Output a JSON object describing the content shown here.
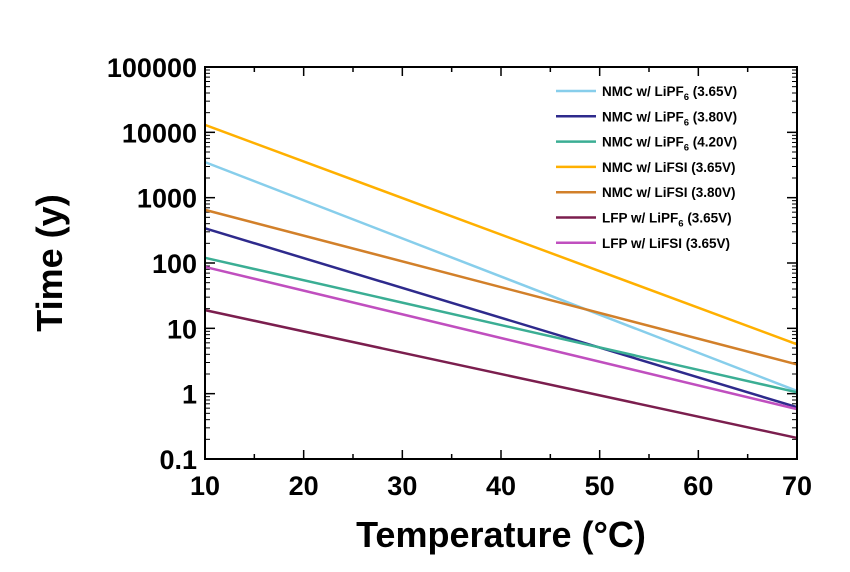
{
  "chart_data": {
    "type": "line",
    "title": "",
    "xlabel": "Temperature (°C)",
    "ylabel": "Time (y)",
    "xlim": [
      10,
      70
    ],
    "ylim": [
      0.1,
      100000
    ],
    "yscale": "log",
    "grid": false,
    "legend_position": "top-right",
    "xticks": [
      "10",
      "20",
      "30",
      "40",
      "50",
      "60",
      "70"
    ],
    "yticks": [
      "0.1",
      "1",
      "10",
      "100",
      "1000",
      "10000",
      "100000"
    ],
    "series": [
      {
        "name": "NMC w/ LiPF6 (3.65V)",
        "label_main": "NMC w/ LiPF",
        "label_sub": "6",
        "label_tail": " (3.65V)",
        "color": "#87CEEB",
        "x": [
          10,
          70
        ],
        "y": [
          3500,
          1.1
        ]
      },
      {
        "name": "NMC w/ LiPF6 (3.80V)",
        "label_main": "NMC w/ LiPF",
        "label_sub": "6",
        "label_tail": " (3.80V)",
        "color": "#2E2A8C",
        "x": [
          10,
          70
        ],
        "y": [
          340,
          0.62
        ]
      },
      {
        "name": "NMC w/ LiPF6 (4.20V)",
        "label_main": "NMC w/ LiPF",
        "label_sub": "6",
        "label_tail": " (4.20V)",
        "color": "#3BAE94",
        "x": [
          10,
          70
        ],
        "y": [
          120,
          1.05
        ]
      },
      {
        "name": "NMC w/ LiFSI (3.65V)",
        "label_main": "NMC w/ LiFSI (3.65V)",
        "label_sub": "",
        "label_tail": "",
        "color": "#FFB000",
        "x": [
          10,
          70
        ],
        "y": [
          13000,
          5.7
        ]
      },
      {
        "name": "NMC w/ LiFSI (3.80V)",
        "label_main": "NMC w/ LiFSI (3.80V)",
        "label_sub": "",
        "label_tail": "",
        "color": "#D2802A",
        "x": [
          10,
          70
        ],
        "y": [
          650,
          2.8
        ]
      },
      {
        "name": "LFP w/ LiPF6 (3.65V)",
        "label_main": "LFP w/ LiPF",
        "label_sub": "6",
        "label_tail": " (3.65V)",
        "color": "#7B1E4E",
        "x": [
          10,
          70
        ],
        "y": [
          19,
          0.21
        ]
      },
      {
        "name": "LFP w/ LiFSI (3.65V)",
        "label_main": "LFP w/ LiFSI (3.65V)",
        "label_sub": "",
        "label_tail": "",
        "color": "#C04FBF",
        "x": [
          10,
          70
        ],
        "y": [
          87,
          0.58
        ]
      }
    ]
  }
}
